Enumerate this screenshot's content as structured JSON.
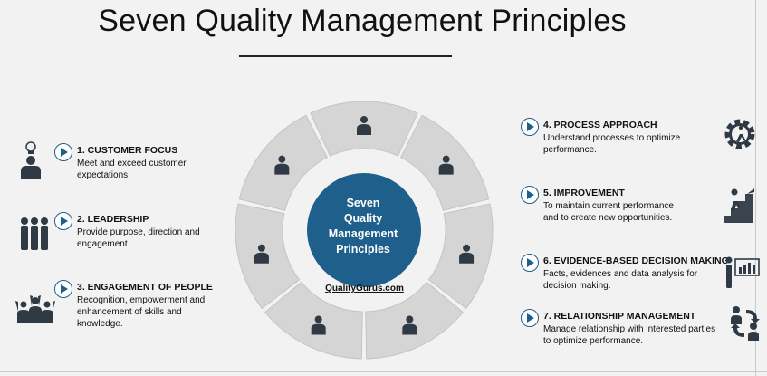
{
  "title": "Seven Quality Management Principles",
  "center": {
    "lines": [
      "Seven",
      "Quality",
      "Management",
      "Principles"
    ]
  },
  "brand": "QualityGurus.com",
  "colors": {
    "accent": "#1f5f8b",
    "center_circle": "#1f5f8b",
    "segment": "#d5d5d5",
    "icon": "#2f3a45"
  },
  "principles": [
    {
      "title": "1. CUSTOMER FOCUS",
      "desc": [
        "Meet and exceed customer",
        "expectations"
      ],
      "icon": "customer-icon"
    },
    {
      "title": "2. LEADERSHIP",
      "desc": [
        "Provide purpose, direction and",
        "engagement."
      ],
      "icon": "team-icon"
    },
    {
      "title": "3. ENGAGEMENT OF PEOPLE",
      "desc": [
        "Recognition, empowerment and",
        "enhancement of skills and",
        "knowledge."
      ],
      "icon": "celebrating-people-icon"
    },
    {
      "title": "4. PROCESS APPROACH",
      "desc": [
        "Understand processes to optimize",
        "performance."
      ],
      "icon": "gear-process-icon"
    },
    {
      "title": "5. IMPROVEMENT",
      "desc": [
        "To maintain current performance",
        "and to create new opportunities."
      ],
      "icon": "climbing-stairs-icon"
    },
    {
      "title": "6. EVIDENCE-BASED DECISION MAKING",
      "desc": [
        "Facts, evidences and data analysis for",
        "decision making."
      ],
      "icon": "presentation-chart-icon"
    },
    {
      "title": "7. RELATIONSHIP MANAGEMENT",
      "desc": [
        "Manage relationship with interested parties",
        "to optimize performance."
      ],
      "icon": "relationship-exchange-icon"
    }
  ]
}
